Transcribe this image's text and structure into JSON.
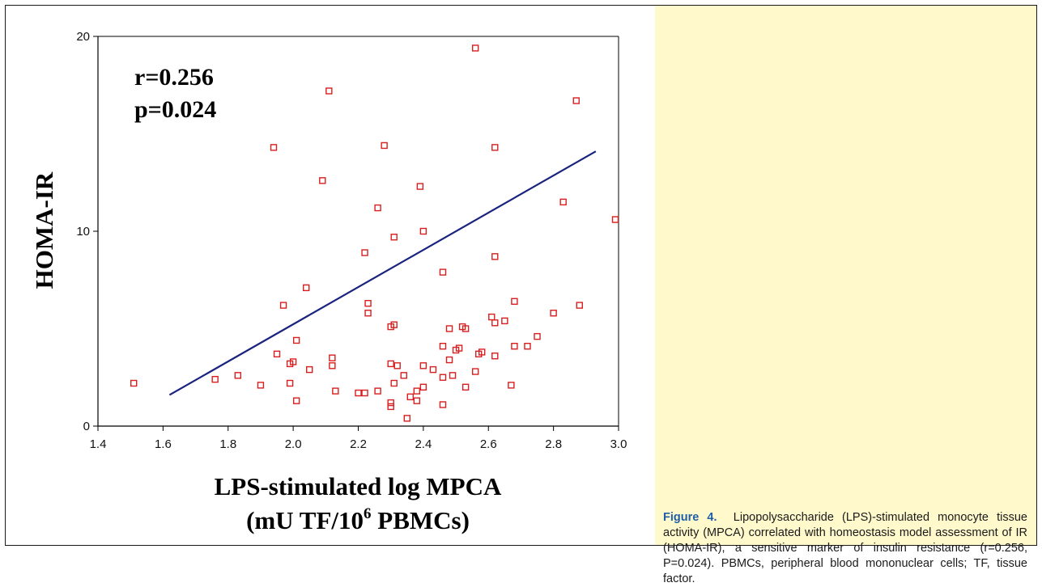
{
  "chart_data": {
    "type": "scatter",
    "ylabel": "HOMA-IR",
    "xlabel_line1": "LPS-stimulated log MPCA",
    "xlabel_line2_pre": "(mU TF/10",
    "xlabel_line2_sup": "6",
    "xlabel_line2_post": " PBMCs)",
    "annotations": [
      "r=0.256",
      "p=0.024"
    ],
    "xlim": [
      1.4,
      3.0
    ],
    "ylim": [
      0,
      20
    ],
    "xticks": [
      1.4,
      1.6,
      1.8,
      2.0,
      2.2,
      2.4,
      2.6,
      2.8,
      3.0
    ],
    "xtick_labels": [
      "1.4",
      "1.6",
      "1.8",
      "2.0",
      "2.2",
      "2.4",
      "2.6",
      "2.8",
      "3.0"
    ],
    "yticks": [
      0,
      10,
      20
    ],
    "ytick_labels": [
      "0",
      "10",
      "20"
    ],
    "grid": false,
    "marker_color": "#d81e1e",
    "line_color": "#1a237e",
    "regression_line": [
      [
        1.62,
        1.6
      ],
      [
        2.93,
        14.1
      ]
    ],
    "points": [
      [
        1.51,
        2.2
      ],
      [
        1.76,
        2.4
      ],
      [
        1.83,
        2.6
      ],
      [
        1.9,
        2.1
      ],
      [
        1.94,
        14.3
      ],
      [
        1.95,
        3.7
      ],
      [
        1.97,
        6.2
      ],
      [
        1.99,
        2.2
      ],
      [
        1.99,
        3.2
      ],
      [
        2.0,
        3.3
      ],
      [
        2.01,
        4.4
      ],
      [
        2.01,
        1.3
      ],
      [
        2.04,
        7.1
      ],
      [
        2.05,
        2.9
      ],
      [
        2.09,
        12.6
      ],
      [
        2.11,
        17.2
      ],
      [
        2.12,
        3.5
      ],
      [
        2.12,
        3.1
      ],
      [
        2.13,
        1.8
      ],
      [
        2.2,
        1.7
      ],
      [
        2.22,
        8.9
      ],
      [
        2.22,
        1.7
      ],
      [
        2.23,
        6.3
      ],
      [
        2.23,
        5.8
      ],
      [
        2.26,
        1.8
      ],
      [
        2.26,
        11.2
      ],
      [
        2.28,
        14.4
      ],
      [
        2.3,
        5.1
      ],
      [
        2.3,
        3.2
      ],
      [
        2.3,
        1.2
      ],
      [
        2.3,
        1.0
      ],
      [
        2.31,
        5.2
      ],
      [
        2.31,
        9.7
      ],
      [
        2.31,
        2.2
      ],
      [
        2.32,
        3.1
      ],
      [
        2.34,
        2.6
      ],
      [
        2.35,
        0.4
      ],
      [
        2.36,
        1.5
      ],
      [
        2.38,
        1.8
      ],
      [
        2.38,
        1.3
      ],
      [
        2.39,
        12.3
      ],
      [
        2.4,
        10.0
      ],
      [
        2.4,
        3.1
      ],
      [
        2.4,
        2.0
      ],
      [
        2.43,
        2.9
      ],
      [
        2.46,
        7.9
      ],
      [
        2.46,
        4.1
      ],
      [
        2.46,
        2.5
      ],
      [
        2.46,
        1.1
      ],
      [
        2.48,
        5.0
      ],
      [
        2.48,
        3.4
      ],
      [
        2.49,
        2.6
      ],
      [
        2.5,
        3.9
      ],
      [
        2.51,
        4.0
      ],
      [
        2.52,
        5.1
      ],
      [
        2.53,
        5.0
      ],
      [
        2.53,
        2.0
      ],
      [
        2.56,
        19.4
      ],
      [
        2.56,
        2.8
      ],
      [
        2.57,
        3.7
      ],
      [
        2.58,
        3.8
      ],
      [
        2.61,
        5.6
      ],
      [
        2.62,
        14.3
      ],
      [
        2.62,
        8.7
      ],
      [
        2.62,
        5.3
      ],
      [
        2.62,
        3.6
      ],
      [
        2.65,
        5.4
      ],
      [
        2.67,
        2.1
      ],
      [
        2.68,
        6.4
      ],
      [
        2.68,
        4.1
      ],
      [
        2.72,
        4.1
      ],
      [
        2.75,
        4.6
      ],
      [
        2.8,
        5.8
      ],
      [
        2.83,
        11.5
      ],
      [
        2.87,
        16.7
      ],
      [
        2.88,
        6.2
      ],
      [
        2.99,
        10.6
      ]
    ]
  },
  "caption": {
    "label": "Figure 4.",
    "text": "Lipopolysaccharide (LPS)-stimulated monocyte tissue activity (MPCA) correlated with homeostasis model assessment of IR (HOMA-IR), a sensitive marker of insulin resistance (r=0.256, P=0.024). PBMCs, peripheral blood mononuclear cells; TF, tissue factor."
  }
}
